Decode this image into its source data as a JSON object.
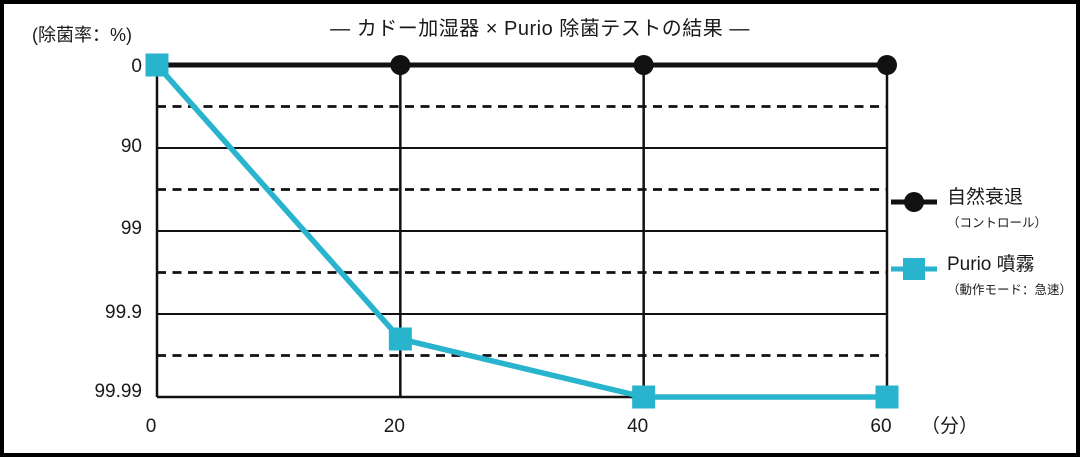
{
  "frame": {
    "border_color": "#000000",
    "background_color": "#ffffff"
  },
  "chart_data": {
    "type": "line",
    "title": "— カドー加湿器 × Purio 除菌テストの結果 —",
    "ylabel": "(除菌率：%)",
    "xlabel": "（分）",
    "x": [
      0,
      20,
      40,
      60
    ],
    "x_tick_labels": [
      "0",
      "20",
      "40",
      "60"
    ],
    "y_tick_labels": [
      "0",
      "90",
      "99",
      "99.9",
      "99.99"
    ],
    "y_scale": "log-reduction, 0 at top down to 99.99 at bottom",
    "x_range_minutes": [
      0,
      60
    ],
    "grid": {
      "horizontal_solid_at_ticks": true,
      "horizontal_dashed_midlines": true,
      "vertical_at_ticks": true
    },
    "legend_position": "right",
    "series": [
      {
        "name": "自然衰退",
        "subtitle": "（コントロール）",
        "marker": "circle",
        "color": "#111111",
        "values": [
          0,
          0,
          0,
          0
        ]
      },
      {
        "name": "Purio 噴霧",
        "subtitle": "（動作モード：急速）",
        "marker": "square",
        "color": "#28b4cd",
        "values": [
          0,
          99.95,
          99.99,
          99.99
        ]
      }
    ]
  }
}
